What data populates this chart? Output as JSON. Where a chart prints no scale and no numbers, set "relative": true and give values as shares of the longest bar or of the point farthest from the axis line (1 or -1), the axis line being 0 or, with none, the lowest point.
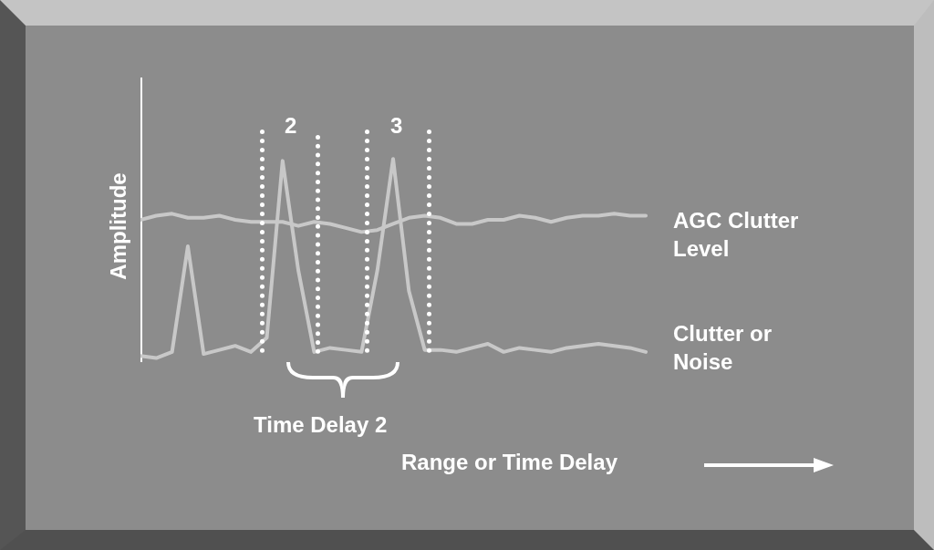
{
  "chart_data": {
    "type": "line",
    "relative": true,
    "ylabel": "Amplitude",
    "xlabel": "Range or Time Delay",
    "marker": "none",
    "grid": false,
    "legend": false,
    "categories": [
      null,
      null,
      null,
      null,
      null,
      null,
      null,
      null,
      null,
      null,
      null,
      null,
      null,
      null,
      null,
      null,
      null,
      null,
      null,
      null,
      null,
      null,
      null,
      null,
      null,
      null,
      null,
      null,
      null,
      null,
      null,
      null,
      null
    ],
    "series": [
      {
        "name": "AGC Clutter Level",
        "color": "#c8c8c8",
        "values": [
          0.7,
          0.72,
          0.73,
          0.71,
          0.71,
          0.72,
          0.7,
          0.69,
          0.69,
          0.69,
          0.67,
          0.69,
          0.68,
          0.66,
          0.64,
          0.65,
          0.68,
          0.71,
          0.72,
          0.71,
          0.68,
          0.68,
          0.7,
          0.7,
          0.72,
          0.71,
          0.69,
          0.71,
          0.72,
          0.72,
          0.73,
          0.72,
          0.72
        ]
      },
      {
        "name": "Clutter or Noise",
        "color": "#c8c8c8",
        "values": [
          0.03,
          0.02,
          0.05,
          0.57,
          0.04,
          0.06,
          0.08,
          0.05,
          0.12,
          0.99,
          0.45,
          0.05,
          0.07,
          0.06,
          0.05,
          0.45,
          1,
          0.35,
          0.06,
          0.06,
          0.05,
          0.07,
          0.09,
          0.05,
          0.07,
          0.06,
          0.05,
          0.07,
          0.08,
          0.09,
          0.08,
          0.07,
          0.05
        ]
      }
    ],
    "annotations": [
      "2",
      "3",
      "Time Delay 2"
    ]
  }
}
